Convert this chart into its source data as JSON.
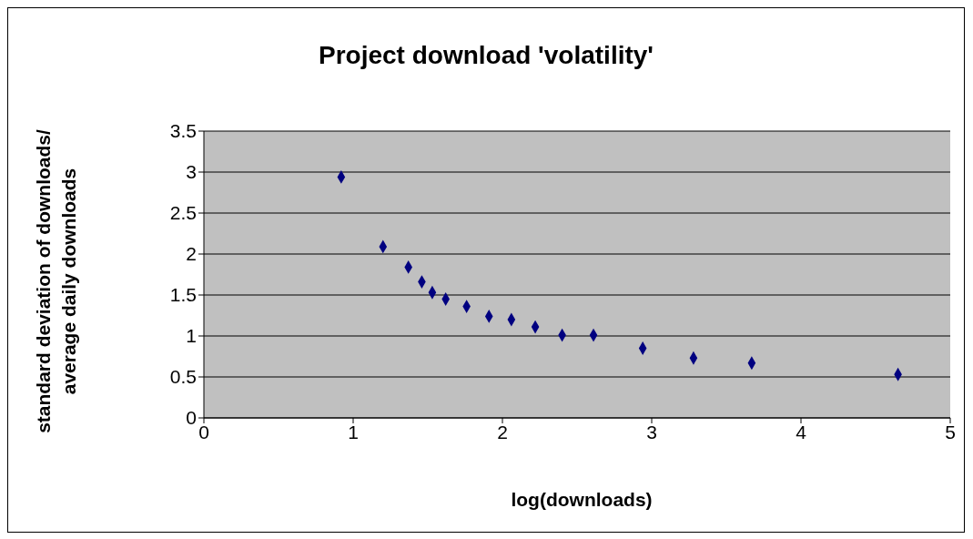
{
  "chart_data": {
    "type": "scatter",
    "title": "Project download 'volatility'",
    "xlabel": "log(downloads)",
    "ylabel": "standard deviation of downloads/ average daily downloads",
    "x": [
      0.92,
      1.2,
      1.37,
      1.46,
      1.53,
      1.62,
      1.76,
      1.91,
      2.06,
      2.22,
      2.4,
      2.61,
      2.94,
      3.28,
      3.67,
      4.65
    ],
    "series": [
      {
        "color": "#000080",
        "values": [
          2.94,
          2.09,
          1.84,
          1.66,
          1.53,
          1.45,
          1.36,
          1.24,
          1.2,
          1.11,
          1.01,
          1.01,
          0.85,
          0.73,
          0.67,
          0.53
        ]
      }
    ],
    "xlim": [
      0,
      5
    ],
    "xticks": [
      0,
      1,
      2,
      3,
      4,
      5
    ],
    "ylim": [
      0,
      3.5
    ],
    "yticks": [
      0,
      0.5,
      1,
      1.5,
      2,
      2.5,
      3,
      3.5
    ],
    "grid": "y",
    "marker": "diamond"
  }
}
